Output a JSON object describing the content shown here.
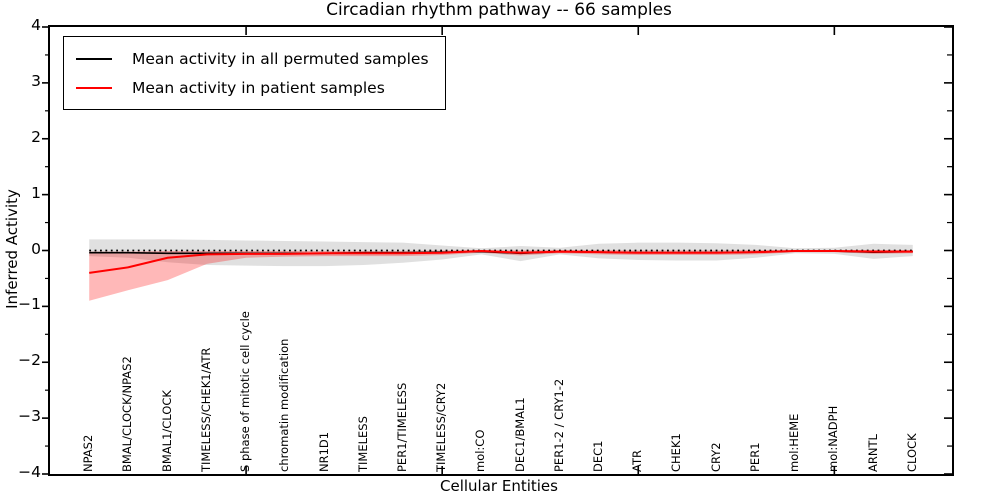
{
  "title": "Circadian rhythm pathway -- 66 samples",
  "axis": {
    "xlabel": "Cellular Entities",
    "ylabel": "Inferred Activity",
    "ylim": [
      -4,
      4
    ],
    "xlim": [
      0,
      23
    ],
    "y_ticks": [
      4,
      3,
      2,
      1,
      0,
      -1,
      -2,
      -3,
      -4
    ],
    "y_tick_labels": [
      "4",
      "3",
      "2",
      "1",
      "0",
      "−1",
      "−2",
      "−3",
      "−4"
    ],
    "y_minor_ticks": [
      3.5,
      2.5,
      1.5,
      0.5,
      -0.5,
      -1.5,
      -2.5,
      -3.5
    ],
    "x_auto_ticks": [
      5,
      10,
      15,
      20
    ]
  },
  "legend": {
    "position": "upper left",
    "entries": [
      {
        "label": "Mean activity in all permuted samples",
        "color": "#000000"
      },
      {
        "label": "Mean activity in patient samples",
        "color": "#ff0000"
      }
    ]
  },
  "chart_data": {
    "type": "line",
    "title": "Circadian rhythm pathway -- 66 samples",
    "xlabel": "Cellular Entities",
    "ylabel": "Inferred Activity",
    "ylim": [
      -4,
      4
    ],
    "xlim": [
      0,
      23
    ],
    "grid": false,
    "legend_position": "upper left",
    "categories": [
      "NPAS2",
      "BMAL/CLOCK/NPAS2",
      "BMAL1/CLOCK",
      "TIMELESS/CHEK1/ATR",
      "S phase of mitotic cell cycle",
      "chromatin modification",
      "NR1D1",
      "TIMELESS",
      "PER1/TIMELESS",
      "TIMELESS/CRY2",
      "mol:CO",
      "DEC1/BMAL1",
      "PER1-2 / CRY1-2",
      "DEC1",
      "ATR",
      "CHEK1",
      "CRY2",
      "PER1",
      "mol:HEME",
      "mol:NADPH",
      "ARNTL",
      "CLOCK"
    ],
    "x": [
      1,
      2,
      3,
      4,
      5,
      6,
      7,
      8,
      9,
      10,
      11,
      12,
      13,
      14,
      15,
      16,
      17,
      18,
      19,
      20,
      21,
      22
    ],
    "series": [
      {
        "name": "Mean activity in all permuted samples",
        "color": "#000000",
        "values": [
          -0.04,
          -0.04,
          -0.05,
          -0.05,
          -0.05,
          -0.05,
          -0.05,
          -0.04,
          -0.04,
          -0.03,
          -0.02,
          -0.05,
          -0.02,
          -0.03,
          -0.04,
          -0.04,
          -0.04,
          -0.03,
          -0.01,
          -0.01,
          -0.03,
          -0.02
        ]
      },
      {
        "name": "Mean activity in patient samples",
        "color": "#ff0000",
        "values": [
          -0.4,
          -0.3,
          -0.13,
          -0.07,
          -0.06,
          -0.06,
          -0.05,
          -0.05,
          -0.05,
          -0.04,
          -0.01,
          -0.04,
          -0.02,
          -0.03,
          -0.04,
          -0.04,
          -0.04,
          -0.03,
          -0.01,
          -0.01,
          -0.02,
          -0.02
        ]
      }
    ],
    "bands": [
      {
        "name": "permuted-samples-band",
        "color": "#000000",
        "opacity": 0.12,
        "upper": [
          0.2,
          0.2,
          0.2,
          0.19,
          0.18,
          0.17,
          0.16,
          0.15,
          0.14,
          0.09,
          0.04,
          0.08,
          0.05,
          0.12,
          0.14,
          0.14,
          0.13,
          0.1,
          0.04,
          0.05,
          0.12,
          0.1
        ],
        "lower": [
          -0.1,
          -0.13,
          -0.21,
          -0.26,
          -0.27,
          -0.28,
          -0.28,
          -0.26,
          -0.22,
          -0.16,
          -0.07,
          -0.19,
          -0.07,
          -0.14,
          -0.17,
          -0.18,
          -0.18,
          -0.13,
          -0.05,
          -0.06,
          -0.15,
          -0.1
        ]
      },
      {
        "name": "patient-samples-band",
        "color": "#ff0000",
        "opacity": 0.28,
        "upper": [
          -0.02,
          -0.02,
          -0.01,
          -0.01,
          -0.01,
          -0.01,
          -0.01,
          -0.01,
          -0.01,
          0.0,
          0.01,
          0.0,
          0.01,
          0.01,
          0.0,
          0.0,
          0.0,
          0.01,
          0.0,
          0.01,
          0.01,
          0.01
        ],
        "lower": [
          -0.9,
          -0.71,
          -0.53,
          -0.24,
          -0.13,
          -0.11,
          -0.1,
          -0.1,
          -0.1,
          -0.08,
          -0.04,
          -0.09,
          -0.05,
          -0.07,
          -0.08,
          -0.08,
          -0.08,
          -0.07,
          -0.03,
          -0.03,
          -0.06,
          -0.05
        ]
      }
    ],
    "reference_line": {
      "y": 0,
      "color": "#000000",
      "style": "dotted"
    }
  }
}
